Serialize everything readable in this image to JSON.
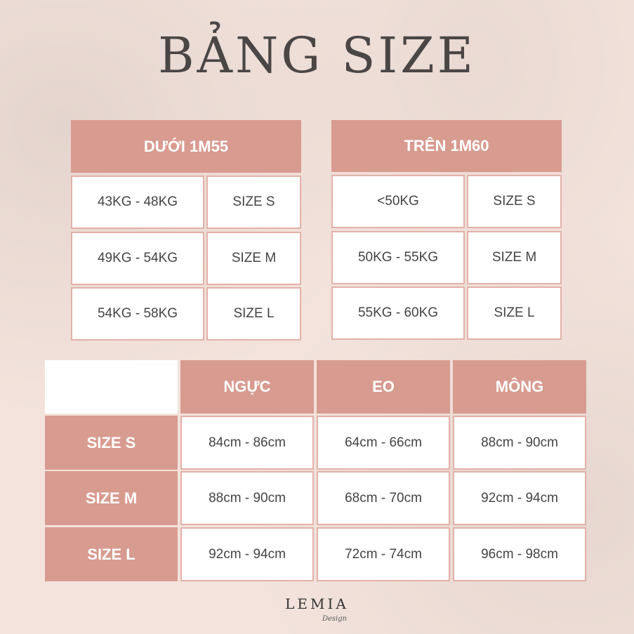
{
  "title": "BẢNG SIZE",
  "table_short": {
    "header": "DƯỚI 1M55",
    "rows": [
      [
        "43KG - 48KG",
        "SIZE S"
      ],
      [
        "49KG - 54KG",
        "SIZE M"
      ],
      [
        "54KG - 58KG",
        "SIZE L"
      ]
    ]
  },
  "table_tall": {
    "header": "TRÊN 1M60",
    "rows": [
      [
        "<50KG",
        "SIZE S"
      ],
      [
        "50KG - 55KG",
        "SIZE M"
      ],
      [
        "55KG - 60KG",
        "SIZE L"
      ]
    ]
  },
  "measure": {
    "headers": [
      "NGỰC",
      "EO",
      "MÔNG"
    ],
    "rows": [
      {
        "size": "SIZE S",
        "values": [
          "84cm - 86cm",
          "64cm - 66cm",
          "88cm - 90cm"
        ]
      },
      {
        "size": "SIZE M",
        "values": [
          "88cm - 90cm",
          "68cm - 70cm",
          "92cm - 94cm"
        ]
      },
      {
        "size": "SIZE L",
        "values": [
          "92cm - 94cm",
          "72cm - 74cm",
          "96cm - 98cm"
        ]
      }
    ]
  },
  "logo": {
    "main": "LEMIA",
    "sub": "Design"
  },
  "colors": {
    "header": "#d89b90",
    "background": "#f3e3dc"
  }
}
